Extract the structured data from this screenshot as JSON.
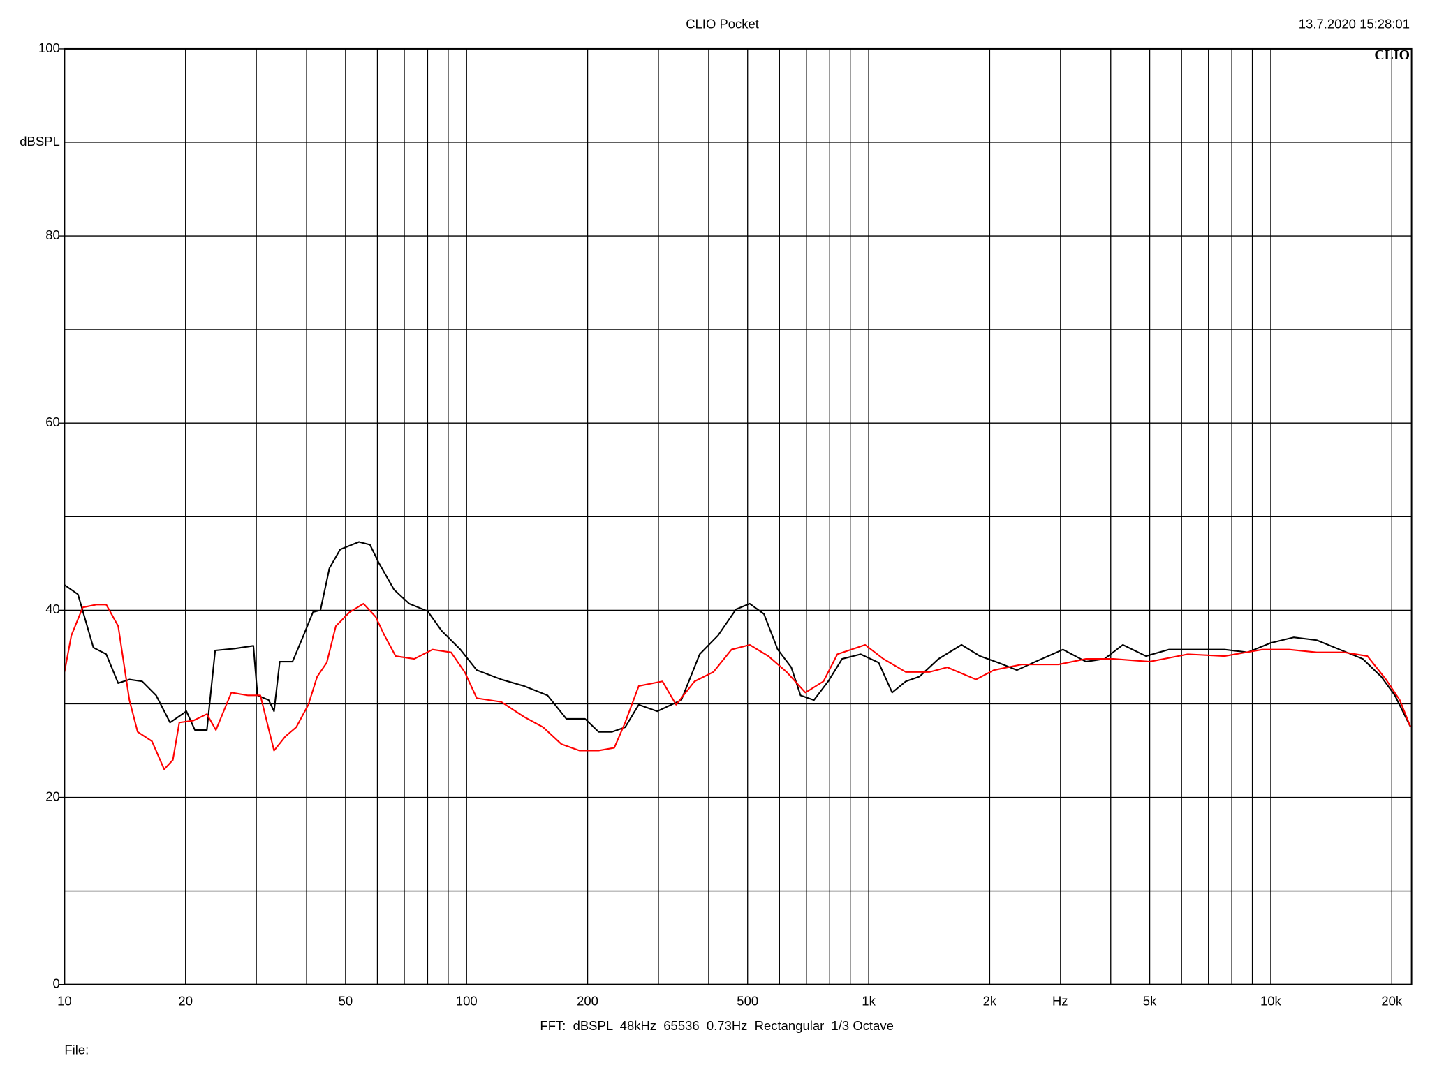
{
  "chart_data": {
    "type": "line",
    "title": "CLIO Pocket",
    "timestamp": "13.7.2020 15:28:01",
    "logo": "CLIO",
    "y_label": "dBSPL",
    "x_label": "Hz",
    "footer": "FFT:  dBSPL  48kHz  65536  0.73Hz  Rectangular  1/3 Octave",
    "file_label": "File:",
    "x_scale": "log",
    "grid": true,
    "xlim": [
      10,
      22400
    ],
    "ylim": [
      0,
      100
    ],
    "yticks": [
      0,
      20,
      40,
      60,
      80,
      100
    ],
    "yminor": [
      10,
      30,
      50,
      70,
      90
    ],
    "xticks": [
      10,
      20,
      50,
      100,
      200,
      500,
      {
        "value": 1000,
        "label": "1k"
      },
      {
        "value": 2000,
        "label": "2k"
      },
      {
        "value": 5000,
        "label": "5k"
      },
      {
        "value": 10000,
        "label": "10k"
      },
      {
        "value": 20000,
        "label": "20k"
      }
    ],
    "xminor": [
      30,
      40,
      60,
      70,
      80,
      90,
      300,
      400,
      600,
      700,
      800,
      900,
      3000,
      4000,
      6000,
      7000,
      8000,
      9000
    ],
    "series": [
      {
        "color": "#000000",
        "x": [
          10,
          10.8,
          11.8,
          12.7,
          13.6,
          14.5,
          15.6,
          16.9,
          18.3,
          20.1,
          21.1,
          22.6,
          23.7,
          26.5,
          29.5,
          30.2,
          32.2,
          33.2,
          34.3,
          36.9,
          39.3,
          41.5,
          43.3,
          45.6,
          48.5,
          54,
          57.5,
          60.6,
          66,
          72,
          80,
          86.7,
          96.5,
          106,
          122,
          139,
          159,
          177,
          197,
          213,
          230,
          248,
          268,
          298,
          342,
          380,
          422,
          468,
          506,
          549,
          594,
          642,
          677,
          731,
          793,
          859,
          955,
          1059,
          1144,
          1237,
          1337,
          1492,
          1702,
          1891,
          2101,
          2337,
          2599,
          3043,
          3471,
          3859,
          4288,
          4894,
          5585,
          6548,
          7675,
          8757,
          9994,
          11401,
          13009,
          14841,
          16937,
          18826,
          20360,
          22280
        ],
        "values": [
          42.7,
          41.7,
          36,
          35.3,
          32.2,
          32.6,
          32.4,
          30.9,
          28,
          29.2,
          27.2,
          27.2,
          35.7,
          35.9,
          36.2,
          30.9,
          30.4,
          29.2,
          34.5,
          34.5,
          37.3,
          39.8,
          40,
          44.5,
          46.5,
          47.3,
          47,
          45,
          42.2,
          40.7,
          39.9,
          37.8,
          35.8,
          33.6,
          32.6,
          31.9,
          30.9,
          28.4,
          28.4,
          27,
          27,
          27.5,
          29.9,
          29.2,
          30.4,
          35.3,
          37.3,
          40.1,
          40.7,
          39.6,
          35.8,
          33.9,
          30.9,
          30.4,
          32.4,
          34.8,
          35.3,
          34.4,
          31.2,
          32.4,
          32.9,
          34.8,
          36.3,
          35.1,
          34.4,
          33.6,
          34.5,
          35.8,
          34.5,
          34.8,
          36.3,
          35.1,
          35.8,
          35.8,
          35.8,
          35.5,
          36.5,
          37.1,
          36.8,
          35.8,
          34.8,
          32.9,
          30.9,
          27.5
        ]
      },
      {
        "color": "#ff0000",
        "x": [
          10,
          10.4,
          11.1,
          12.0,
          12.7,
          13.6,
          14.5,
          15.2,
          16.5,
          17.7,
          18.6,
          19.3,
          20.9,
          22.6,
          23.8,
          26,
          28.6,
          30.7,
          31.9,
          33.2,
          35.4,
          37.7,
          40.4,
          42.5,
          44.9,
          47.3,
          51.2,
          55.4,
          59.4,
          62.5,
          66.6,
          74.1,
          82.3,
          91.5,
          98.9,
          106,
          122,
          139,
          155,
          172,
          191,
          213,
          233,
          248,
          268,
          307,
          332,
          369,
          411,
          456,
          506,
          563,
          625,
          696,
          772,
          836,
          980,
          1088,
          1237,
          1416,
          1569,
          1849,
          2047,
          2399,
          2965,
          3471,
          4066,
          4994,
          6217,
          7675,
          9539,
          11107,
          13009,
          15236,
          17395,
          19346,
          20937,
          22280
        ],
        "values": [
          33.4,
          37.3,
          40.3,
          40.6,
          40.6,
          38.3,
          30.4,
          27,
          26,
          23,
          24,
          28,
          28.2,
          28.9,
          27.2,
          31.2,
          30.9,
          30.9,
          28,
          25,
          26.5,
          27.5,
          29.9,
          32.9,
          34.4,
          38.3,
          39.8,
          40.7,
          39.3,
          37.3,
          35.1,
          34.8,
          35.8,
          35.5,
          33.4,
          30.6,
          30.2,
          28.6,
          27.5,
          25.7,
          25,
          25,
          25.3,
          28,
          31.9,
          32.4,
          29.9,
          32.4,
          33.4,
          35.8,
          36.3,
          35.1,
          33.4,
          31.2,
          32.4,
          35.3,
          36.3,
          34.8,
          33.4,
          33.4,
          33.9,
          32.6,
          33.6,
          34.2,
          34.2,
          34.8,
          34.8,
          34.5,
          35.3,
          35.1,
          35.8,
          35.8,
          35.5,
          35.5,
          35.1,
          32.6,
          30.4,
          27.5
        ]
      }
    ]
  }
}
